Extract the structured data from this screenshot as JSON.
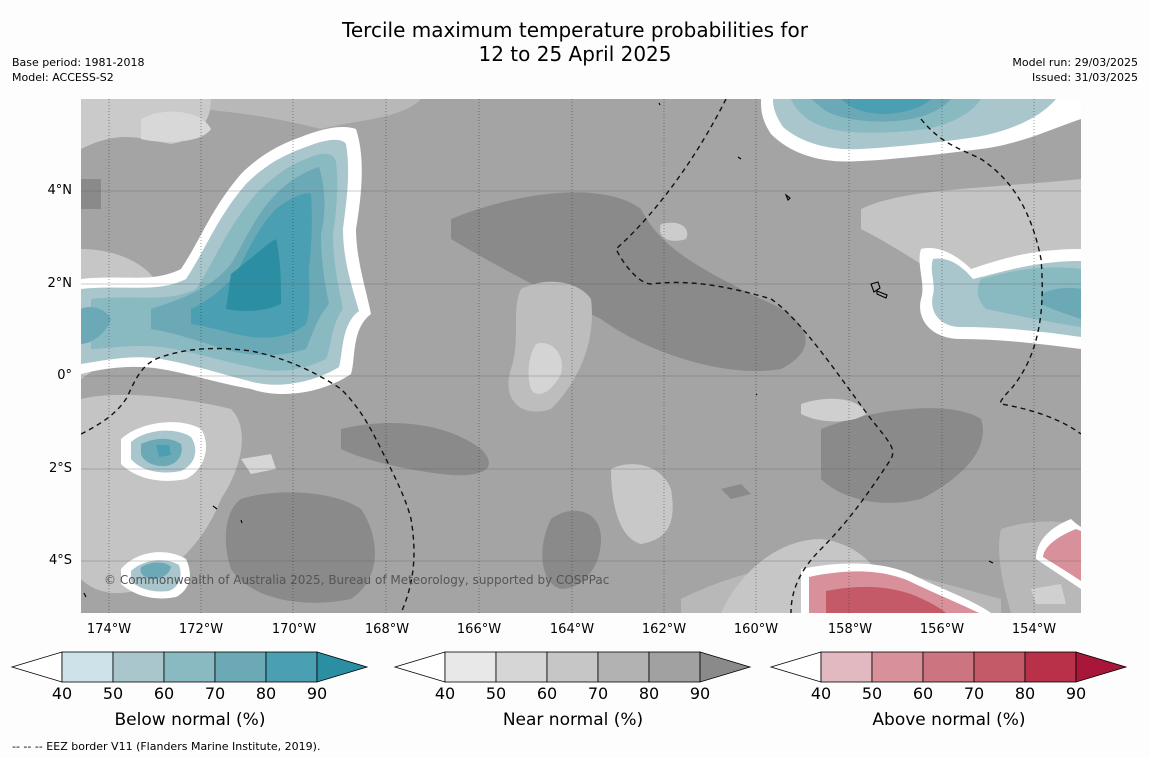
{
  "title": {
    "line1": "Tercile maximum temperature probabilities for",
    "line2": "12 to 25 April 2025"
  },
  "meta_left": {
    "base_period": "Base period: 1981-2018",
    "model": "Model: ACCESS-S2"
  },
  "meta_right": {
    "model_run": "Model run: 29/03/2025",
    "issued": "Issued: 31/03/2025"
  },
  "copyright": "© Commonwealth of Australia 2025, Bureau of Meteorology, supported by COSPPac",
  "lat_labels": [
    "4°N",
    "2°N",
    "0°",
    "2°S",
    "4°S"
  ],
  "lon_labels": [
    "174°W",
    "172°W",
    "170°W",
    "168°W",
    "166°W",
    "164°W",
    "162°W",
    "160°W",
    "158°W",
    "156°W",
    "154°W"
  ],
  "colorbars": [
    {
      "title": "Below normal (%)",
      "ticks": [
        "40",
        "50",
        "60",
        "70",
        "80",
        "90"
      ],
      "colors": [
        "#ffffff",
        "#cde3e9",
        "#a9c6cc",
        "#89b9c1",
        "#6ba9b7",
        "#4aa0b2",
        "#2b8ea2"
      ]
    },
    {
      "title": "Near normal (%)",
      "ticks": [
        "40",
        "50",
        "60",
        "70",
        "80",
        "90"
      ],
      "colors": [
        "#ffffff",
        "#e8e8e8",
        "#d6d6d6",
        "#c6c6c6",
        "#b2b2b2",
        "#a1a1a1",
        "#8a8a8a"
      ]
    },
    {
      "title": "Above normal (%)",
      "ticks": [
        "40",
        "50",
        "60",
        "70",
        "80",
        "90"
      ],
      "colors": [
        "#ffffff",
        "#e2b9c0",
        "#d8919b",
        "#cc7580",
        "#c45a68",
        "#b93148",
        "#a8173a"
      ]
    }
  ],
  "footer": "--  --  -- EEZ border V11 (Flanders Marine Institute, 2019)."
}
